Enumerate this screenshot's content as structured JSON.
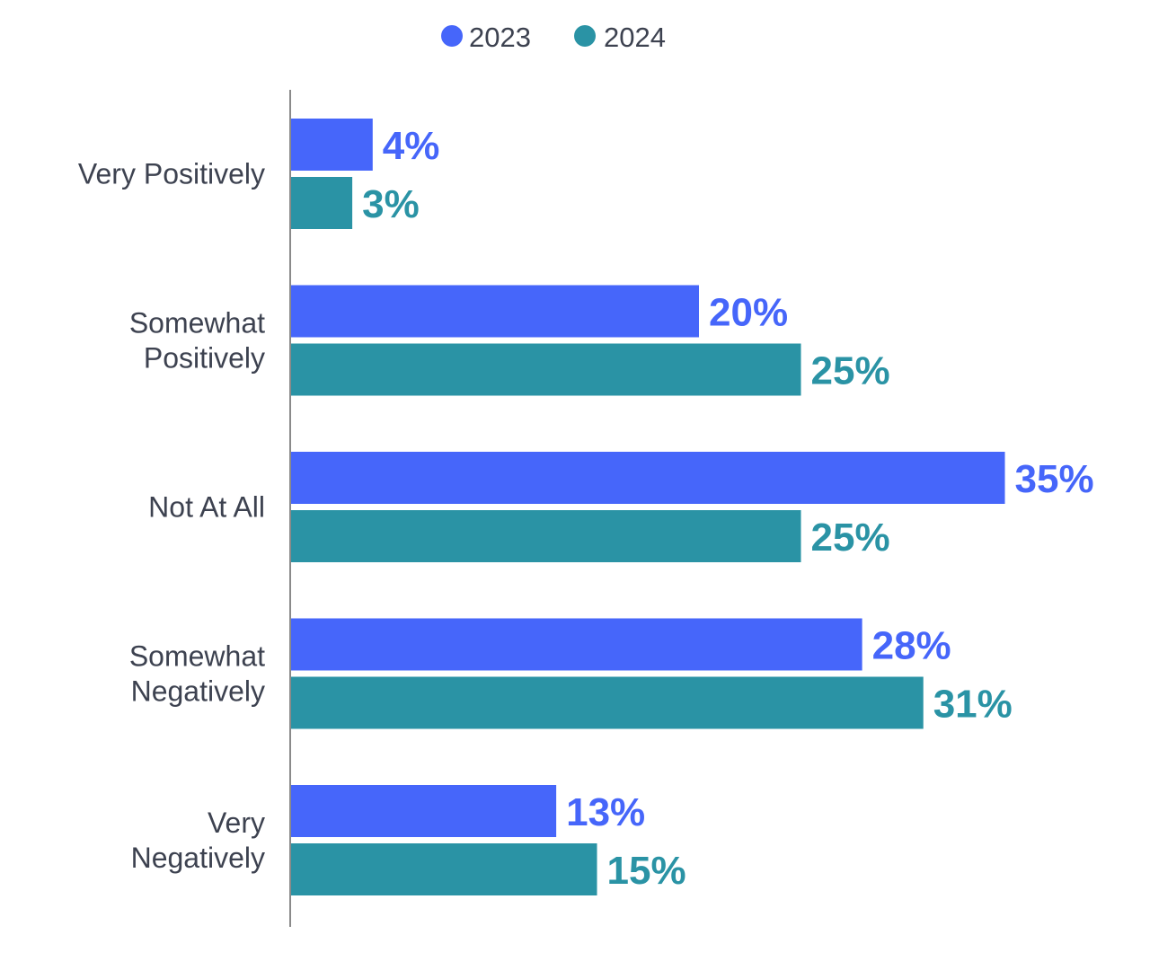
{
  "chart_data": {
    "type": "bar",
    "orientation": "horizontal",
    "title": "",
    "xlabel": "",
    "ylabel": "",
    "grid": false,
    "legend_position": "top-center",
    "xlim": [
      0,
      35
    ],
    "categories": [
      "Very Positively",
      "Somewhat Positively",
      "Not At All",
      "Somewhat Negatively",
      "Very Negatively"
    ],
    "category_label_lines": [
      [
        "Very Positively"
      ],
      [
        "Somewhat",
        "Positively"
      ],
      [
        "Not At All"
      ],
      [
        "Somewhat",
        "Negatively"
      ],
      [
        "Very",
        "Negatively"
      ]
    ],
    "series": [
      {
        "name": "2023",
        "color": "#4666fa",
        "values": [
          4,
          20,
          35,
          28,
          13
        ],
        "labels": [
          "4%",
          "20%",
          "35%",
          "28%",
          "13%"
        ]
      },
      {
        "name": "2024",
        "color": "#2a93a5",
        "values": [
          3,
          25,
          25,
          31,
          15
        ],
        "labels": [
          "3%",
          "25%",
          "25%",
          "31%",
          "15%"
        ]
      }
    ]
  }
}
